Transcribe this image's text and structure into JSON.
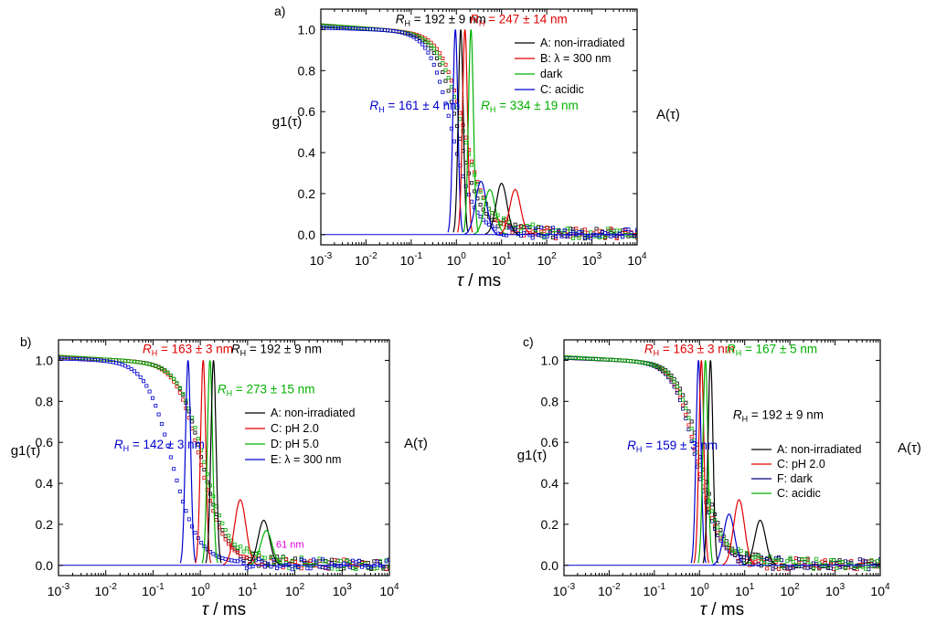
{
  "chart_data": [
    {
      "type": "line",
      "panel_label": "a)",
      "xlabel_italic": "τ",
      "xlabel_rest": " / ms",
      "ylabel": "g1(τ)",
      "ylabel_right": "A(τ)",
      "xscale": "log",
      "xlim": [
        0.001,
        10000
      ],
      "ylim": [
        -0.05,
        1.1
      ],
      "yticks": [
        "0.0",
        "0.2",
        "0.4",
        "0.6",
        "0.8",
        "1.0"
      ],
      "xtick_exponents": [
        "-3",
        "-2",
        "-1",
        "0",
        "1",
        "2",
        "3",
        "4"
      ],
      "legend_position": "upper-right",
      "legend": [
        {
          "label": "A: non-irradiated",
          "color": "#000000"
        },
        {
          "label": "B: λ = 300 nm",
          "color": "#e00000"
        },
        {
          "label": "dark",
          "color": "#00b000"
        },
        {
          "label": "C: acidic",
          "color": "#0000d0"
        }
      ],
      "correlation_series": [
        {
          "color": "#000000",
          "tau_half": 1.1,
          "width": 1.0,
          "tail": 0.06
        },
        {
          "color": "#e00000",
          "tau_half": 1.5,
          "width": 1.0,
          "tail": 0.07
        },
        {
          "color": "#00b000",
          "tau_half": 1.4,
          "width": 1.05,
          "tail": 0.07
        },
        {
          "color": "#0000d0",
          "tau_half": 0.8,
          "width": 1.0,
          "tail": 0.03
        }
      ],
      "distribution_peaks": [
        {
          "color": "#0000d0",
          "center": 0.95,
          "height": 1.0
        },
        {
          "color": "#000000",
          "center": 1.25,
          "height": 1.0
        },
        {
          "color": "#e00000",
          "center": 1.55,
          "height": 1.0
        },
        {
          "color": "#00b000",
          "center": 2.1,
          "height": 1.0
        },
        {
          "color": "#0000d0",
          "center": 3.5,
          "height": 0.26
        },
        {
          "color": "#00b000",
          "center": 5.5,
          "height": 0.22
        },
        {
          "color": "#000000",
          "center": 10,
          "height": 0.25
        },
        {
          "color": "#e00000",
          "center": 20,
          "height": 0.22
        }
      ],
      "annotations": [
        {
          "sym": "R",
          "sub": "H",
          "value": " = 192 ± 9 nm",
          "color": "#000000",
          "x": 0.045,
          "y": 1.03
        },
        {
          "sym": "R",
          "sub": "H",
          "value": " = 247 ± 14 nm",
          "color": "#e00000",
          "x": 2.0,
          "y": 1.03
        },
        {
          "sym": "R",
          "sub": "H",
          "value": " = 161 ± 4 nm",
          "color": "#0000d0",
          "x": 0.012,
          "y": 0.61
        },
        {
          "sym": "R",
          "sub": "H",
          "value": " = 334 ± 19 nm",
          "color": "#00b000",
          "x": 3.5,
          "y": 0.61
        }
      ]
    },
    {
      "type": "line",
      "panel_label": "b)",
      "xlabel_italic": "τ",
      "xlabel_rest": " / ms",
      "ylabel": "g1(τ)",
      "ylabel_right": "A(τ)",
      "xscale": "log",
      "xlim": [
        0.001,
        10000
      ],
      "ylim": [
        -0.05,
        1.1
      ],
      "yticks": [
        "0.0",
        "0.2",
        "0.4",
        "0.6",
        "0.8",
        "1.0"
      ],
      "xtick_exponents": [
        "-3",
        "-2",
        "-1",
        "0",
        "1",
        "2",
        "3",
        "4"
      ],
      "legend_position": "center-right",
      "legend": [
        {
          "label": "A: non-irradiated",
          "color": "#000000"
        },
        {
          "label": "C: pH  2.0",
          "color": "#e00000"
        },
        {
          "label": "D: pH  5.0",
          "color": "#00b000"
        },
        {
          "label": "E: λ = 300 nm",
          "color": "#0000d0"
        }
      ],
      "correlation_series": [
        {
          "color": "#000000",
          "tau_half": 1.1,
          "width": 1.0,
          "tail": 0.05
        },
        {
          "color": "#e00000",
          "tau_half": 1.0,
          "width": 1.0,
          "tail": 0.05
        },
        {
          "color": "#00b000",
          "tau_half": 1.2,
          "width": 1.05,
          "tail": 0.06
        },
        {
          "color": "#0000d0",
          "tau_half": 0.25,
          "width": 1.1,
          "tail": 0.03
        }
      ],
      "distribution_peaks": [
        {
          "color": "#0000d0",
          "center": 0.55,
          "height": 1.0
        },
        {
          "color": "#e00000",
          "center": 1.15,
          "height": 1.0
        },
        {
          "color": "#00b000",
          "center": 1.6,
          "height": 1.0
        },
        {
          "color": "#000000",
          "center": 1.9,
          "height": 1.0
        },
        {
          "color": "#e00000",
          "center": 7,
          "height": 0.32
        },
        {
          "color": "#000000",
          "center": 22,
          "height": 0.22
        },
        {
          "color": "#00b000",
          "center": 25,
          "height": 0.17
        }
      ],
      "annotations": [
        {
          "sym": "R",
          "sub": "H",
          "value": " = 163 ± 3 nm",
          "color": "#e00000",
          "x": 0.06,
          "y": 1.035
        },
        {
          "sym": "R",
          "sub": "H",
          "value": " = 192 ± 9 nm",
          "color": "#000000",
          "x": 4.5,
          "y": 1.035
        },
        {
          "sym": "R",
          "sub": "H",
          "value": " = 273 ± 15 nm",
          "color": "#00b000",
          "x": 2.3,
          "y": 0.84
        },
        {
          "sym": "R",
          "sub": "H",
          "value": " = 142 ± 3 nm",
          "color": "#0000d0",
          "x": 0.015,
          "y": 0.57
        },
        {
          "sym": "",
          "sub": "",
          "value": "61 nm",
          "color": "#e000e0",
          "x": 40,
          "y": 0.085
        }
      ]
    },
    {
      "type": "line",
      "panel_label": "c)",
      "xlabel_italic": "τ",
      "xlabel_rest": " / ms",
      "ylabel": "g1(τ)",
      "ylabel_right": "A(τ)",
      "xscale": "log",
      "xlim": [
        0.001,
        10000
      ],
      "ylim": [
        -0.05,
        1.1
      ],
      "yticks": [
        "0.0",
        "0.2",
        "0.4",
        "0.6",
        "0.8",
        "1.0"
      ],
      "xtick_exponents": [
        "-3",
        "-2",
        "-1",
        "0",
        "1",
        "2",
        "3",
        "4"
      ],
      "legend_position": "lower-right",
      "legend": [
        {
          "label": "A: non-irradiated",
          "color": "#000000"
        },
        {
          "label": "C: pH 2.0",
          "color": "#e00000"
        },
        {
          "label": "F: dark",
          "color": "#000080"
        },
        {
          "label": "C: acidic",
          "color": "#00b000"
        }
      ],
      "correlation_series": [
        {
          "color": "#000000",
          "tau_half": 1.1,
          "width": 1.0,
          "tail": 0.05
        },
        {
          "color": "#e00000",
          "tau_half": 0.9,
          "width": 1.0,
          "tail": 0.04
        },
        {
          "color": "#000080",
          "tau_half": 0.85,
          "width": 1.0,
          "tail": 0.04
        },
        {
          "color": "#00b000",
          "tau_half": 1.0,
          "width": 1.0,
          "tail": 0.05
        }
      ],
      "distribution_peaks": [
        {
          "color": "#0000d0",
          "center": 0.95,
          "height": 1.0
        },
        {
          "color": "#e00000",
          "center": 1.1,
          "height": 1.0
        },
        {
          "color": "#00b000",
          "center": 1.35,
          "height": 1.0
        },
        {
          "color": "#000000",
          "center": 1.75,
          "height": 1.0
        },
        {
          "color": "#0000d0",
          "center": 4.5,
          "height": 0.25
        },
        {
          "color": "#e00000",
          "center": 7.5,
          "height": 0.32
        },
        {
          "color": "#000000",
          "center": 22,
          "height": 0.22
        }
      ],
      "annotations": [
        {
          "sym": "R",
          "sub": "H",
          "value": " = 163 ± 3 nm",
          "color": "#e00000",
          "x": 0.06,
          "y": 1.035
        },
        {
          "sym": "R",
          "sub": "H",
          "value": " = 167 ± 5 nm",
          "color": "#00b000",
          "x": 4.0,
          "y": 1.035
        },
        {
          "sym": "R",
          "sub": "H",
          "value": " = 192 ± 9 nm",
          "color": "#000000",
          "x": 5.5,
          "y": 0.715
        },
        {
          "sym": "R",
          "sub": "H",
          "value": " = 159 ± 3 nm",
          "color": "#0000d0",
          "x": 0.025,
          "y": 0.565
        }
      ]
    }
  ]
}
